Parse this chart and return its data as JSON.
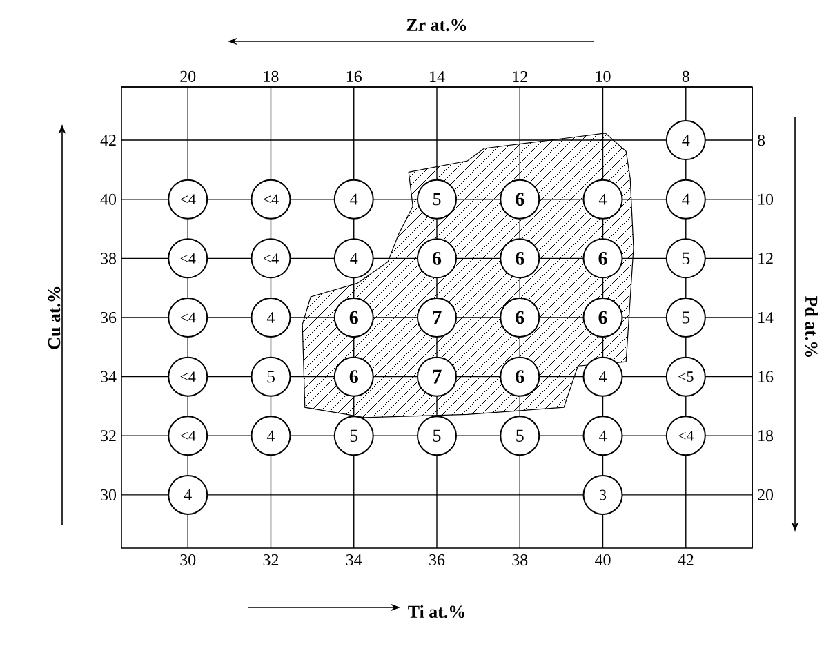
{
  "chart_data": {
    "type": "heatmap",
    "xlabel": "Ti at.%",
    "x2label": "Zr at.%",
    "ylabel": "Cu at.%",
    "y2label": "Pd at.%",
    "categories": [
      "30",
      "32",
      "34",
      "36",
      "38",
      "40",
      "42"
    ],
    "y_categories": [
      "42",
      "40",
      "38",
      "36",
      "34",
      "32",
      "30"
    ],
    "y2_categories": [
      "8",
      "10",
      "12",
      "14",
      "16",
      "18",
      "20"
    ],
    "x2lim": [
      21.6,
      6.4
    ],
    "x2ticks": [
      20,
      18,
      16,
      14,
      12,
      10,
      8
    ],
    "cells": [
      [
        null,
        null,
        null,
        null,
        null,
        null,
        4
      ],
      [
        null,
        null,
        4,
        5,
        6,
        4,
        4
      ],
      [
        null,
        null,
        4,
        6,
        6,
        6,
        5
      ],
      [
        null,
        4,
        6,
        7,
        6,
        6,
        5
      ],
      [
        null,
        5,
        6,
        7,
        6,
        4,
        null
      ],
      [
        null,
        4,
        5,
        5,
        5,
        4,
        null
      ],
      [
        4,
        null,
        null,
        null,
        null,
        3,
        null
      ]
    ],
    "cell_labels": [
      [
        null,
        null,
        null,
        null,
        null,
        null,
        "4"
      ],
      [
        "<4",
        "<4",
        "4",
        "5",
        "6",
        "4",
        "4"
      ],
      [
        "<4",
        "<4",
        "4",
        "6",
        "6",
        "6",
        "5"
      ],
      [
        "<4",
        "4",
        "6",
        "7",
        "6",
        "6",
        "5"
      ],
      [
        "<4",
        "5",
        "6",
        "7",
        "6",
        "4",
        "<5"
      ],
      [
        "<4",
        "4",
        "5",
        "5",
        "5",
        "4",
        "<4"
      ],
      [
        "4",
        null,
        null,
        null,
        null,
        "3",
        null
      ]
    ],
    "grid": true
  }
}
